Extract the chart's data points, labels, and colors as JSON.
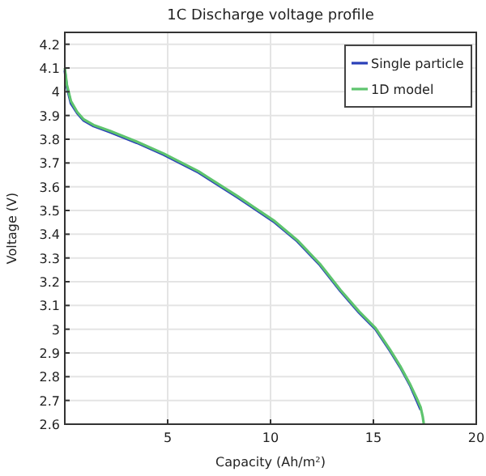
{
  "chart_data": {
    "type": "line",
    "title": "1C Discharge voltage profile",
    "xlabel": "Capacity (Ah/m²)",
    "ylabel": "Voltage (V)",
    "series": [
      {
        "name": "Single particle",
        "color": "#2a3fb8",
        "x": [
          0,
          0.1,
          0.3,
          0.6,
          0.9,
          1.4,
          2.2,
          3.5,
          4.8,
          6.5,
          8.4,
          10.2,
          11.3,
          12.4,
          13.4,
          14.3,
          15.1,
          15.8,
          16.3,
          16.8,
          17.1,
          17.3
        ],
        "values": [
          4.09,
          4.02,
          3.95,
          3.91,
          3.88,
          3.855,
          3.83,
          3.785,
          3.735,
          3.66,
          3.555,
          3.45,
          3.37,
          3.27,
          3.16,
          3.07,
          3.0,
          2.91,
          2.84,
          2.76,
          2.7,
          2.66
        ]
      },
      {
        "name": "1D model",
        "color": "#5ec46e",
        "x": [
          0,
          0.1,
          0.3,
          0.6,
          0.9,
          1.4,
          2.2,
          3.5,
          4.8,
          6.5,
          8.4,
          10.2,
          11.3,
          12.4,
          13.4,
          14.3,
          15.1,
          15.8,
          16.3,
          16.8,
          17.1,
          17.3,
          17.4,
          17.45
        ],
        "values": [
          4.1,
          4.03,
          3.96,
          3.915,
          3.885,
          3.86,
          3.835,
          3.79,
          3.74,
          3.665,
          3.56,
          3.455,
          3.375,
          3.275,
          3.165,
          3.075,
          3.005,
          2.915,
          2.845,
          2.765,
          2.71,
          2.67,
          2.63,
          2.6
        ]
      }
    ],
    "xlim": [
      0,
      20
    ],
    "xticks": [
      {
        "value": 0,
        "label": null
      },
      5,
      10,
      15,
      20
    ],
    "ylim": [
      2.6,
      4.25
    ],
    "yticks": [
      2.6,
      2.7,
      2.8,
      2.9,
      3,
      3.1,
      3.2,
      3.3,
      3.4,
      3.5,
      3.6,
      3.7,
      3.8,
      3.9,
      4,
      4.1,
      4.2
    ],
    "grid": true,
    "legend": "top right",
    "marker": "none",
    "line_style": "solid"
  }
}
